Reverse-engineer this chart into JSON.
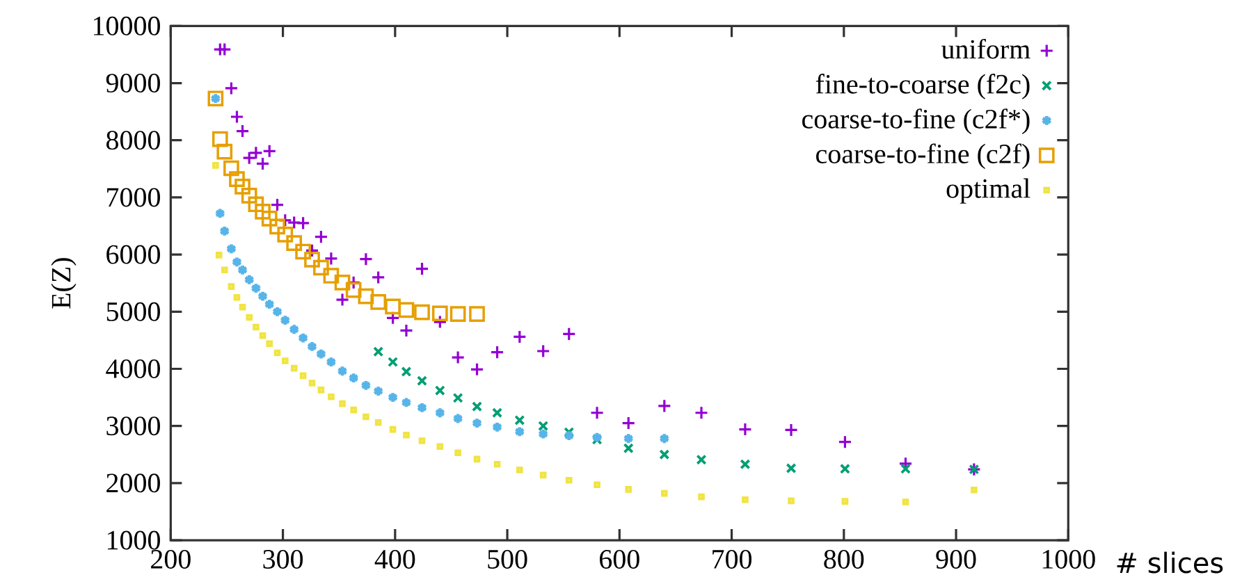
{
  "chart_data": {
    "type": "scatter",
    "xlabel": "# slices",
    "ylabel": "E(Z)",
    "xlim": [
      200,
      1000
    ],
    "ylim": [
      1000,
      10000
    ],
    "xticks": [
      200,
      300,
      400,
      500,
      600,
      700,
      800,
      900,
      1000
    ],
    "yticks": [
      1000,
      2000,
      3000,
      4000,
      5000,
      6000,
      7000,
      8000,
      9000,
      10000
    ],
    "grid": false,
    "legend": "top right",
    "series": [
      {
        "name": "uniform",
        "color": "#9400d3",
        "marker": "plus",
        "x": [
          244,
          248,
          254,
          259,
          264,
          270,
          276,
          282,
          288,
          295,
          302,
          310,
          318,
          326,
          334,
          343,
          353,
          363,
          374,
          385,
          398,
          410,
          424,
          440,
          456,
          473,
          491,
          511,
          532,
          555,
          580,
          608,
          640,
          673,
          712,
          753,
          801,
          855,
          916
        ],
        "values": [
          9590,
          9590,
          8910,
          8410,
          8160,
          7690,
          7780,
          7590,
          7810,
          6870,
          6600,
          6560,
          6550,
          6070,
          6310,
          5930,
          5210,
          5510,
          5920,
          5600,
          4890,
          4670,
          5750,
          4820,
          4200,
          3990,
          4290,
          4560,
          4310,
          4610,
          3230,
          3050,
          3350,
          3230,
          2940,
          2930,
          2720,
          2340,
          2240
        ]
      },
      {
        "name": "fine-to-coarse (f2c)",
        "color": "#009e73",
        "marker": "cross",
        "x": [
          385,
          398,
          410,
          424,
          440,
          456,
          473,
          491,
          511,
          532,
          555,
          580,
          608,
          640,
          673,
          712,
          753,
          801,
          855,
          916
        ],
        "values": [
          4300,
          4120,
          3950,
          3790,
          3620,
          3490,
          3340,
          3230,
          3100,
          3000,
          2890,
          2760,
          2610,
          2500,
          2410,
          2330,
          2260,
          2250,
          2250,
          2240
        ]
      },
      {
        "name": "coarse-to-fine (c2f*)",
        "color": "#56b4e9",
        "marker": "cross",
        "x": [
          240,
          244,
          248,
          254,
          259,
          264,
          270,
          276,
          282,
          288,
          295,
          302,
          310,
          318,
          326,
          334,
          343,
          353,
          363,
          374,
          385,
          398,
          410,
          424,
          440,
          456,
          473,
          491,
          511,
          532,
          555,
          580,
          608,
          640
        ],
        "values": [
          8730,
          6720,
          6410,
          6100,
          5870,
          5730,
          5560,
          5410,
          5270,
          5130,
          5000,
          4850,
          4690,
          4540,
          4390,
          4260,
          4120,
          3960,
          3840,
          3710,
          3610,
          3500,
          3410,
          3320,
          3230,
          3130,
          3050,
          2980,
          2900,
          2860,
          2830,
          2800,
          2780,
          2780
        ]
      },
      {
        "name": "coarse-to-fine (c2f)",
        "color": "#e69f00",
        "marker": "square",
        "x": [
          240,
          244,
          248,
          254,
          259,
          264,
          270,
          276,
          282,
          288,
          295,
          302,
          310,
          318,
          326,
          334,
          343,
          353,
          363,
          374,
          385,
          398,
          410,
          424,
          440,
          456,
          473
        ],
        "values": [
          8730,
          8020,
          7800,
          7510,
          7320,
          7190,
          7030,
          6880,
          6750,
          6630,
          6490,
          6350,
          6200,
          6050,
          5910,
          5770,
          5630,
          5510,
          5380,
          5270,
          5170,
          5090,
          5030,
          4990,
          4970,
          4960,
          4960
        ]
      },
      {
        "name": "optimal",
        "color": "#f0e442",
        "marker": "square",
        "x": [
          240,
          243,
          248,
          254,
          259,
          264,
          270,
          276,
          282,
          288,
          295,
          302,
          310,
          318,
          326,
          334,
          343,
          353,
          363,
          374,
          385,
          398,
          410,
          424,
          440,
          456,
          473,
          491,
          511,
          532,
          555,
          580,
          608,
          640,
          673,
          712,
          753,
          801,
          855,
          916
        ],
        "values": [
          7560,
          5990,
          5730,
          5440,
          5250,
          5080,
          4900,
          4730,
          4580,
          4440,
          4280,
          4140,
          4010,
          3880,
          3750,
          3630,
          3510,
          3390,
          3280,
          3160,
          3060,
          2940,
          2840,
          2740,
          2640,
          2530,
          2420,
          2330,
          2230,
          2140,
          2050,
          1970,
          1890,
          1820,
          1760,
          1710,
          1690,
          1680,
          1670,
          1880
        ]
      }
    ]
  }
}
